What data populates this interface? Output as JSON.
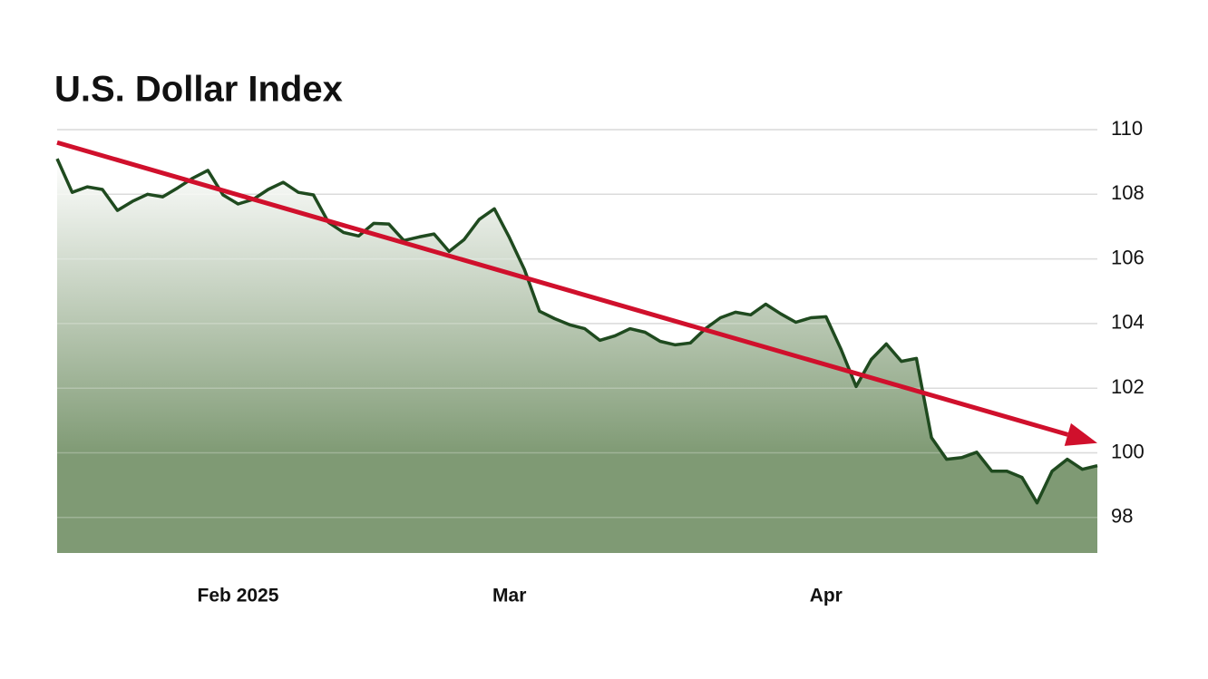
{
  "chart_data": {
    "type": "area",
    "title": "U.S. Dollar Index",
    "categories": [
      null,
      null,
      null,
      null,
      null,
      null,
      null,
      null,
      null,
      null,
      null,
      null,
      "Feb 2025",
      null,
      null,
      null,
      null,
      null,
      null,
      null,
      null,
      null,
      null,
      null,
      null,
      null,
      null,
      null,
      null,
      null,
      "Mar",
      null,
      null,
      null,
      null,
      null,
      null,
      null,
      null,
      null,
      null,
      null,
      null,
      null,
      null,
      null,
      null,
      null,
      null,
      null,
      null,
      "Apr",
      null,
      null,
      null,
      null,
      null,
      null,
      null,
      null,
      null,
      null,
      null,
      null,
      null,
      null,
      null,
      null,
      null,
      null
    ],
    "values": [
      109.1,
      108.06,
      108.23,
      108.15,
      107.5,
      107.78,
      108.0,
      107.92,
      108.2,
      108.5,
      108.74,
      107.98,
      107.7,
      107.84,
      108.15,
      108.37,
      108.06,
      107.98,
      107.13,
      106.82,
      106.71,
      107.1,
      107.08,
      106.57,
      106.68,
      106.77,
      106.23,
      106.6,
      107.22,
      107.55,
      106.66,
      105.67,
      104.38,
      104.15,
      103.96,
      103.84,
      103.48,
      103.62,
      103.84,
      103.73,
      103.45,
      103.34,
      103.4,
      103.84,
      104.18,
      104.35,
      104.27,
      104.6,
      104.3,
      104.04,
      104.18,
      104.21,
      103.2,
      102.05,
      102.89,
      103.37,
      102.83,
      102.92,
      100.47,
      99.8,
      99.85,
      100.02,
      99.43,
      99.43,
      99.24,
      98.45,
      99.43,
      99.8,
      99.49,
      99.6
    ],
    "color": "#1f4a1f",
    "fill_color": "#7f9a74",
    "ylim": [
      96.9,
      110
    ],
    "yticks": [
      98,
      100,
      102,
      104,
      106,
      108,
      110
    ],
    "grid": true,
    "trend": {
      "start": 109.6,
      "end": 100.3,
      "color": "#d0102c"
    }
  }
}
